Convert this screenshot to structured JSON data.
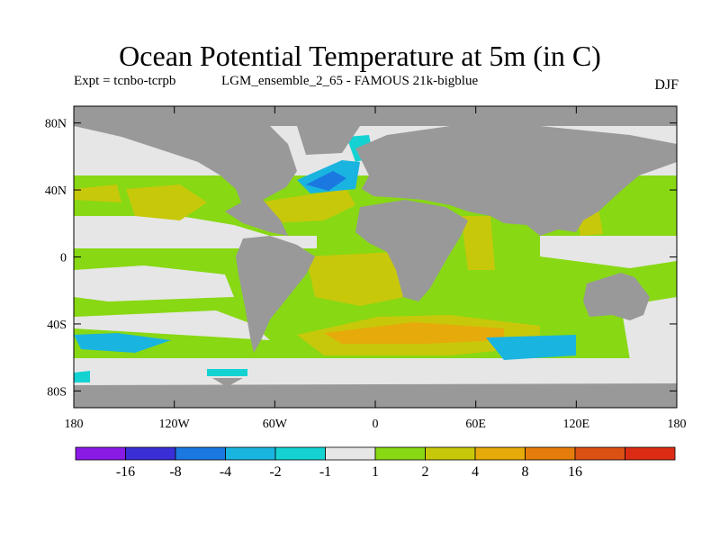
{
  "title": "Ocean Potential Temperature at 5m (in C)",
  "expt_label": "Expt = tcnbo-tcrpb",
  "run_label": "LGM_ensemble_2_65 - FAMOUS 21k-bigblue",
  "season": "DJF",
  "map": {
    "y_ticks": [
      "80N",
      "40N",
      "0",
      "40S",
      "80S"
    ],
    "x_ticks": [
      "180",
      "120W",
      "60W",
      "0",
      "60E",
      "120E",
      "180"
    ],
    "land_color": "#999999"
  },
  "colorbar": {
    "colors": [
      "#8a1ae6",
      "#3a2ed6",
      "#1a78e0",
      "#1ab4e0",
      "#14d2d2",
      "#e6e6e6",
      "#88d814",
      "#c8c80a",
      "#e6aa0a",
      "#e67d0a",
      "#dc5014",
      "#dc2d14"
    ],
    "labels": [
      "-16",
      "-8",
      "-4",
      "-2",
      "-1",
      "1",
      "2",
      "4",
      "8",
      "16"
    ]
  }
}
